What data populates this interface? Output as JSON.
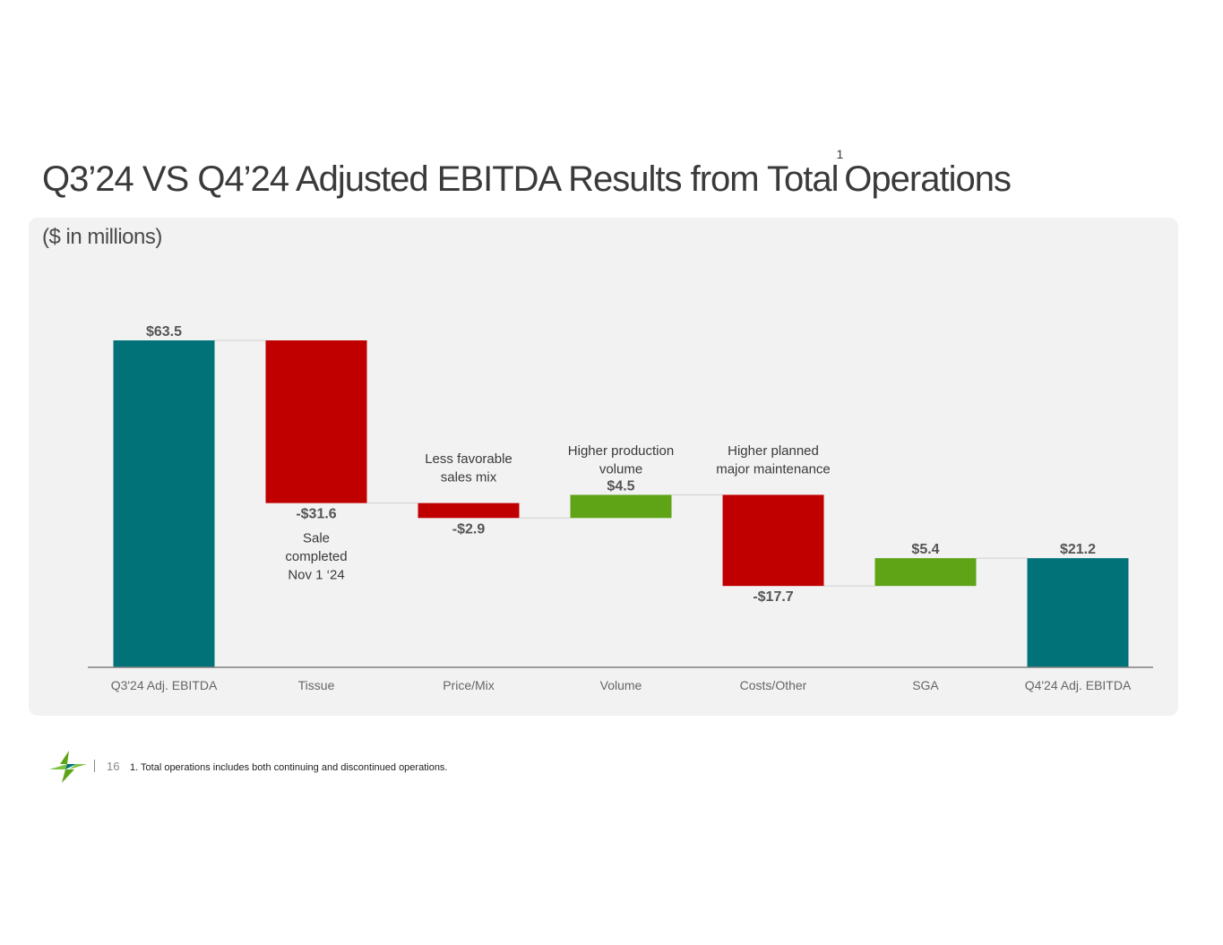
{
  "title": {
    "main": "Q3’24 VS Q4’24 Adjusted EBITDA Results from Total",
    "superscript": "1",
    "tail": "Operations"
  },
  "subtitle": "($ in millions)",
  "chart_data": {
    "type": "waterfall",
    "unit": "$ millions",
    "categories": [
      "Q3'24 Adj. EBITDA",
      "Tissue",
      "Price/Mix",
      "Volume",
      "Costs/Other",
      "SGA",
      "Q4'24 Adj. EBITDA"
    ],
    "values": [
      63.5,
      -31.6,
      -2.9,
      4.5,
      -17.7,
      5.4,
      21.2
    ],
    "kinds": [
      "total",
      "delta",
      "delta",
      "delta",
      "delta",
      "delta",
      "total"
    ],
    "labels": [
      "$63.5",
      "-$31.6",
      "-$2.9",
      "$4.5",
      "-$17.7",
      "$5.4",
      "$21.2"
    ],
    "annotations": [
      {
        "category": "Tissue",
        "lines": [
          "Sale",
          "completed",
          "Nov 1 ‘24"
        ],
        "position": "below"
      },
      {
        "category": "Price/Mix",
        "lines": [
          "Less favorable",
          "sales mix"
        ],
        "position": "above"
      },
      {
        "category": "Volume",
        "lines": [
          "Higher production",
          "volume"
        ],
        "position": "above"
      },
      {
        "category": "Costs/Other",
        "lines": [
          "Higher planned",
          "major maintenance"
        ],
        "position": "above"
      }
    ],
    "ylim": [
      0,
      63.5
    ],
    "colors": {
      "total": "#007278",
      "decrease": "#c00000",
      "increase": "#5fa317",
      "axis": "#7f7f7f",
      "connector": "#d0d0d0"
    }
  },
  "footer": {
    "page_number": "16",
    "footnote": "1. Total operations includes both continuing and discontinued operations."
  }
}
